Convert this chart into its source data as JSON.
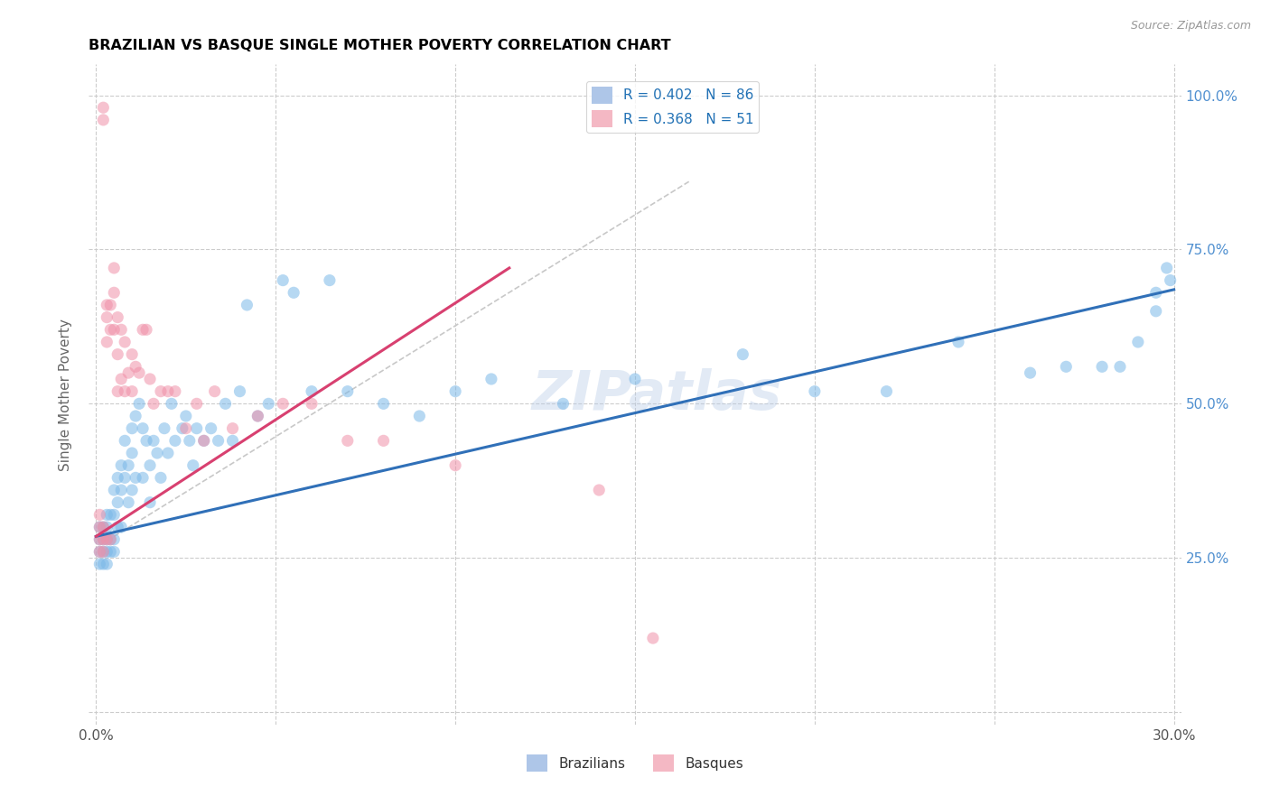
{
  "title": "BRAZILIAN VS BASQUE SINGLE MOTHER POVERTY CORRELATION CHART",
  "source": "Source: ZipAtlas.com",
  "ylabel": "Single Mother Poverty",
  "watermark": "ZIPatlas",
  "legend_entries": [
    {
      "label": "R = 0.402   N = 86",
      "color": "#aec6e8"
    },
    {
      "label": "R = 0.368   N = 51",
      "color": "#f4b8c4"
    }
  ],
  "blue_color": "#7bb8e8",
  "pink_color": "#f090a8",
  "blue_line_color": "#3070b8",
  "pink_line_color": "#d84070",
  "diagonal_line_color": "#c8c8c8",
  "background_color": "#ffffff",
  "grid_color": "#cccccc",
  "title_color": "#000000",
  "source_color": "#999999",
  "right_label_color": "#5090d0",
  "xlim": [
    0.0,
    0.3
  ],
  "ylim": [
    0.0,
    1.05
  ],
  "blue_scatter_x": [
    0.001,
    0.001,
    0.001,
    0.001,
    0.002,
    0.002,
    0.002,
    0.002,
    0.003,
    0.003,
    0.003,
    0.003,
    0.003,
    0.004,
    0.004,
    0.004,
    0.005,
    0.005,
    0.005,
    0.005,
    0.006,
    0.006,
    0.006,
    0.007,
    0.007,
    0.007,
    0.008,
    0.008,
    0.009,
    0.009,
    0.01,
    0.01,
    0.01,
    0.011,
    0.011,
    0.012,
    0.013,
    0.013,
    0.014,
    0.015,
    0.015,
    0.016,
    0.017,
    0.018,
    0.019,
    0.02,
    0.021,
    0.022,
    0.024,
    0.025,
    0.026,
    0.027,
    0.028,
    0.03,
    0.032,
    0.034,
    0.036,
    0.038,
    0.04,
    0.042,
    0.045,
    0.048,
    0.052,
    0.055,
    0.06,
    0.065,
    0.07,
    0.08,
    0.09,
    0.1,
    0.11,
    0.13,
    0.15,
    0.18,
    0.2,
    0.22,
    0.24,
    0.26,
    0.27,
    0.28,
    0.285,
    0.29,
    0.295,
    0.295,
    0.298,
    0.299
  ],
  "blue_scatter_y": [
    0.3,
    0.28,
    0.26,
    0.24,
    0.3,
    0.28,
    0.26,
    0.24,
    0.32,
    0.3,
    0.28,
    0.26,
    0.24,
    0.32,
    0.28,
    0.26,
    0.36,
    0.32,
    0.28,
    0.26,
    0.38,
    0.34,
    0.3,
    0.4,
    0.36,
    0.3,
    0.44,
    0.38,
    0.4,
    0.34,
    0.46,
    0.42,
    0.36,
    0.48,
    0.38,
    0.5,
    0.46,
    0.38,
    0.44,
    0.4,
    0.34,
    0.44,
    0.42,
    0.38,
    0.46,
    0.42,
    0.5,
    0.44,
    0.46,
    0.48,
    0.44,
    0.4,
    0.46,
    0.44,
    0.46,
    0.44,
    0.5,
    0.44,
    0.52,
    0.66,
    0.48,
    0.5,
    0.7,
    0.68,
    0.52,
    0.7,
    0.52,
    0.5,
    0.48,
    0.52,
    0.54,
    0.5,
    0.54,
    0.58,
    0.52,
    0.52,
    0.6,
    0.55,
    0.56,
    0.56,
    0.56,
    0.6,
    0.68,
    0.65,
    0.72,
    0.7
  ],
  "pink_scatter_x": [
    0.001,
    0.001,
    0.001,
    0.001,
    0.002,
    0.002,
    0.002,
    0.002,
    0.002,
    0.003,
    0.003,
    0.003,
    0.003,
    0.004,
    0.004,
    0.004,
    0.005,
    0.005,
    0.005,
    0.006,
    0.006,
    0.006,
    0.007,
    0.007,
    0.008,
    0.008,
    0.009,
    0.01,
    0.01,
    0.011,
    0.012,
    0.013,
    0.014,
    0.015,
    0.016,
    0.018,
    0.02,
    0.022,
    0.025,
    0.028,
    0.03,
    0.033,
    0.038,
    0.045,
    0.052,
    0.06,
    0.07,
    0.08,
    0.1,
    0.14,
    0.155
  ],
  "pink_scatter_y": [
    0.32,
    0.3,
    0.28,
    0.26,
    0.98,
    0.96,
    0.3,
    0.28,
    0.26,
    0.66,
    0.64,
    0.6,
    0.28,
    0.66,
    0.62,
    0.28,
    0.72,
    0.68,
    0.62,
    0.64,
    0.58,
    0.52,
    0.62,
    0.54,
    0.6,
    0.52,
    0.55,
    0.58,
    0.52,
    0.56,
    0.55,
    0.62,
    0.62,
    0.54,
    0.5,
    0.52,
    0.52,
    0.52,
    0.46,
    0.5,
    0.44,
    0.52,
    0.46,
    0.48,
    0.5,
    0.5,
    0.44,
    0.44,
    0.4,
    0.36,
    0.12
  ],
  "blue_line_x": [
    0.0,
    0.3
  ],
  "blue_line_y": [
    0.285,
    0.685
  ],
  "pink_line_x": [
    0.0,
    0.115
  ],
  "pink_line_y": [
    0.285,
    0.72
  ],
  "diag_line_x": [
    0.005,
    0.165
  ],
  "diag_line_y": [
    0.285,
    0.86
  ]
}
